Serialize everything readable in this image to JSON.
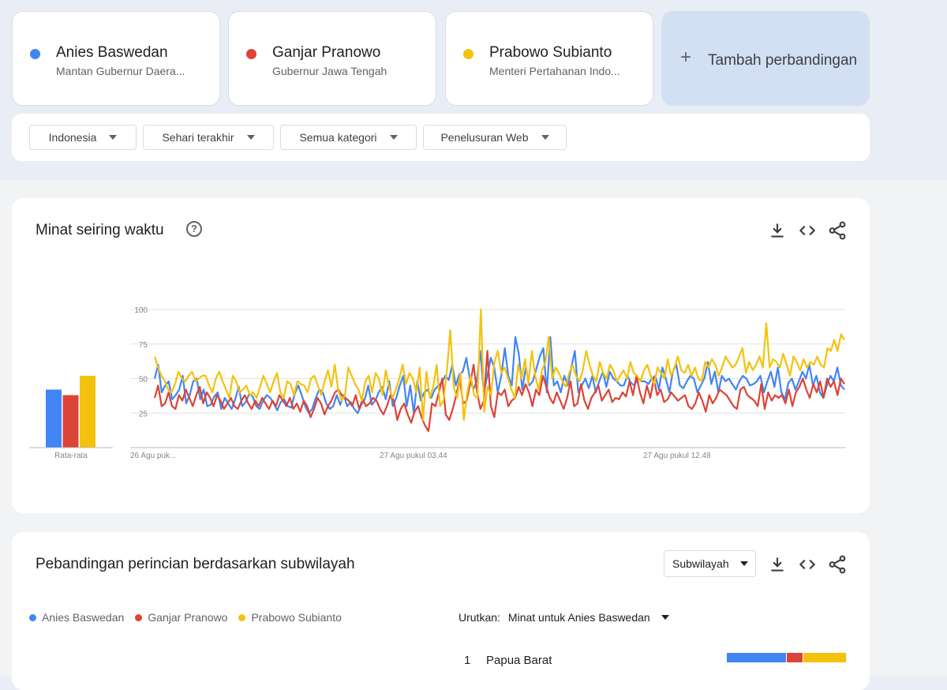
{
  "terms": [
    {
      "name": "Anies Baswedan",
      "subtitle": "Mantan Gubernur Daera...",
      "color": "#4285f4"
    },
    {
      "name": "Ganjar Pranowo",
      "subtitle": "Gubernur Jawa Tengah",
      "color": "#db4437"
    },
    {
      "name": "Prabowo Subianto",
      "subtitle": "Menteri Pertahanan Indo...",
      "color": "#f4c20d"
    }
  ],
  "add_compare": {
    "plus": "+",
    "label": "Tambah perbandingan"
  },
  "filters": {
    "region": "Indonesia",
    "time": "Sehari terakhir",
    "category": "Semua kategori",
    "type": "Penelusuran Web"
  },
  "interest": {
    "title": "Minat seiring waktu",
    "help": "?",
    "avg_label": "Rata-rata"
  },
  "subregion": {
    "title": "Pebandingan perincian berdasarkan subwilayah",
    "select": "Subwilayah",
    "legend": [
      "Anies Baswedan",
      "Ganjar Pranowo",
      "Prabowo Subianto"
    ],
    "sort_label": "Urutkan:",
    "sort_value": "Minat untuk Anies Baswedan",
    "rows": [
      {
        "rank": "1",
        "name": "Papua Barat",
        "shares": [
          0.5,
          0.14,
          0.36
        ]
      }
    ]
  },
  "chart_data": {
    "type": "line",
    "ylim": [
      0,
      100
    ],
    "y_ticks": [
      "100",
      "75",
      "50",
      "25"
    ],
    "x_tick_labels": [
      "26 Agu puk...",
      "27 Agu pukul 03.44",
      "27 Agu pukul 12.48"
    ],
    "averages": [
      {
        "name": "Anies Baswedan",
        "value": 42
      },
      {
        "name": "Ganjar Pranowo",
        "value": 38
      },
      {
        "name": "Prabowo Subianto",
        "value": 52
      }
    ],
    "series": [
      {
        "name": "Anies Baswedan",
        "color": "#4285f4",
        "values": [
          50,
          60,
          40,
          45,
          48,
          35,
          38,
          42,
          52,
          32,
          38,
          48,
          50,
          35,
          42,
          30,
          31,
          37,
          40,
          28,
          36,
          32,
          28,
          35,
          44,
          30,
          33,
          39,
          37,
          30,
          28,
          34,
          38,
          36,
          32,
          27,
          33,
          35,
          30,
          29,
          39,
          45,
          38,
          30,
          25,
          28,
          36,
          42,
          40,
          32,
          28,
          30,
          38,
          31,
          38,
          30,
          33,
          28,
          25,
          31,
          35,
          45,
          31,
          34,
          40,
          44,
          35,
          48,
          30,
          36,
          45,
          52,
          30,
          45,
          25,
          48,
          34,
          40,
          42,
          36,
          42,
          45,
          47,
          52,
          49,
          60,
          45,
          53,
          55,
          65,
          50,
          42,
          48,
          70,
          40,
          52,
          65,
          58,
          40,
          52,
          72,
          52,
          45,
          80,
          68,
          42,
          58,
          45,
          48,
          57,
          66,
          72,
          40,
          80,
          45,
          48,
          40,
          52,
          45,
          58,
          70,
          40,
          45,
          50,
          43,
          52,
          40,
          48,
          55,
          44,
          55,
          50,
          48,
          45,
          45,
          52,
          47,
          45,
          50,
          48,
          48,
          46,
          50,
          52,
          42,
          58,
          50,
          40,
          55,
          60,
          45,
          43,
          48,
          52,
          50,
          40,
          45,
          50,
          62,
          46,
          55,
          40,
          52,
          48,
          50,
          46,
          42,
          48,
          52,
          50,
          45,
          46,
          48,
          52,
          40,
          48,
          55,
          44,
          58,
          40,
          35,
          47,
          50,
          42,
          48,
          55,
          50,
          60,
          45,
          52,
          40,
          36,
          45,
          52,
          48,
          58,
          45,
          42
        ]
      },
      {
        "name": "Ganjar Pranowo",
        "color": "#db4437",
        "values": [
          36,
          45,
          30,
          32,
          40,
          30,
          28,
          38,
          34,
          42,
          36,
          30,
          38,
          44,
          32,
          40,
          36,
          30,
          38,
          34,
          28,
          32,
          36,
          30,
          28,
          34,
          38,
          32,
          28,
          34,
          30,
          36,
          32,
          28,
          34,
          30,
          38,
          34,
          30,
          36,
          28,
          32,
          26,
          34,
          30,
          22,
          28,
          36,
          32,
          24,
          30,
          34,
          40,
          42,
          38,
          36,
          34,
          30,
          38,
          28,
          35,
          30,
          32,
          36,
          34,
          28,
          24,
          30,
          38,
          34,
          20,
          28,
          32,
          24,
          18,
          26,
          30,
          22,
          16,
          12,
          32,
          30,
          40,
          50,
          24,
          20,
          28,
          38,
          50,
          32,
          34,
          46,
          60,
          40,
          28,
          34,
          70,
          30,
          22,
          40,
          38,
          42,
          30,
          34,
          36,
          44,
          38,
          46,
          40,
          30,
          42,
          38,
          52,
          44,
          36,
          32,
          40,
          34,
          28,
          36,
          48,
          30,
          32,
          46,
          34,
          28,
          36,
          40,
          45,
          34,
          38,
          42,
          33,
          36,
          35,
          40,
          37,
          48,
          38,
          52,
          40,
          32,
          45,
          36,
          50,
          38,
          42,
          33,
          35,
          40,
          37,
          34,
          36,
          38,
          30,
          28,
          32,
          40,
          34,
          26,
          38,
          32,
          36,
          42,
          40,
          38,
          34,
          30,
          28,
          42,
          44,
          38,
          36,
          34,
          30,
          46,
          28,
          40,
          34,
          38,
          36,
          38,
          32,
          42,
          30,
          40,
          44,
          50,
          42,
          36,
          46,
          40,
          48,
          36,
          50,
          44,
          48,
          38,
          50,
          46
        ]
      },
      {
        "name": "Prabowo Subianto",
        "color": "#f4c20d",
        "values": [
          66,
          58,
          52,
          48,
          42,
          40,
          46,
          55,
          50,
          48,
          52,
          55,
          48,
          50,
          52,
          52,
          45,
          40,
          50,
          55,
          48,
          42,
          36,
          52,
          48,
          40,
          42,
          45,
          38,
          40,
          36,
          44,
          52,
          46,
          40,
          48,
          54,
          40,
          36,
          48,
          46,
          38,
          48,
          46,
          45,
          40,
          50,
          52,
          45,
          38,
          48,
          56,
          44,
          60,
          42,
          34,
          38,
          58,
          52,
          46,
          42,
          34,
          48,
          52,
          40,
          54,
          50,
          38,
          56,
          44,
          36,
          42,
          50,
          60,
          46,
          54,
          50,
          40,
          58,
          20,
          55,
          36,
          44,
          60,
          30,
          34,
          56,
          85,
          44,
          36,
          54,
          20,
          40,
          52,
          38,
          36,
          100,
          26,
          44,
          38,
          62,
          70,
          54,
          58,
          50,
          42,
          36,
          60,
          50,
          64,
          46,
          70,
          52,
          42,
          56,
          62,
          80,
          50,
          58,
          54,
          48,
          44,
          54,
          60,
          52,
          48,
          56,
          70,
          60,
          52,
          48,
          62,
          54,
          50,
          60,
          56,
          48,
          52,
          56,
          50,
          62,
          54,
          52,
          48,
          56,
          60,
          52,
          46,
          58,
          54,
          50,
          64,
          52,
          58,
          66,
          56,
          54,
          60,
          52,
          58,
          50,
          48,
          62,
          58,
          64,
          60,
          52,
          58,
          66,
          62,
          58,
          60,
          66,
          72,
          54,
          62,
          56,
          60,
          66,
          58,
          90,
          58,
          64,
          62,
          58,
          68,
          60,
          52,
          66,
          62,
          56,
          64,
          58,
          62,
          60,
          66,
          60,
          58,
          72,
          70,
          78,
          70,
          82,
          78
        ]
      }
    ]
  }
}
